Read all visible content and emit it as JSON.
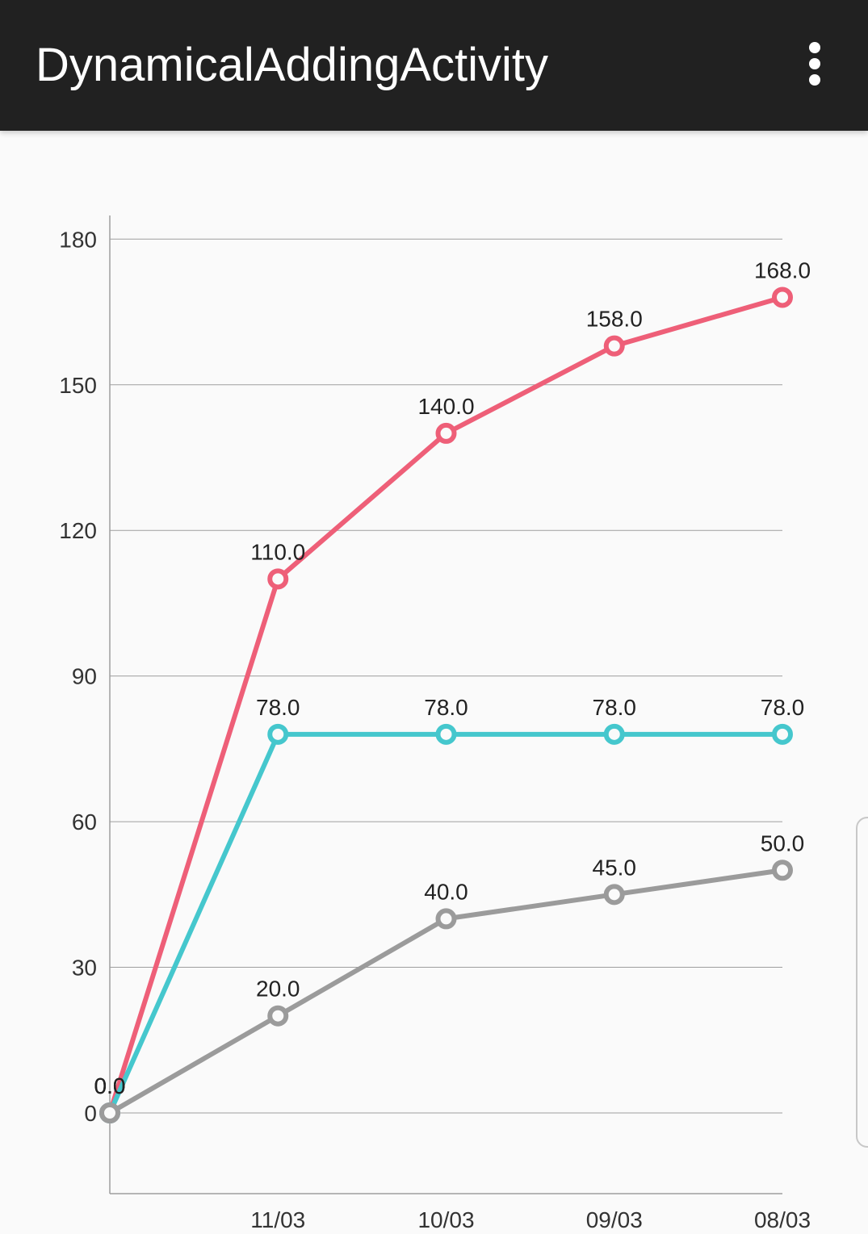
{
  "app_bar": {
    "title": "DynamicalAddingActivity",
    "menu_icon": "more-vert-icon",
    "background": "#212121"
  },
  "chart_data": {
    "type": "line",
    "categories": [
      "",
      "11/03",
      "10/03",
      "09/03",
      "08/03"
    ],
    "ylim": [
      -17,
      183
    ],
    "yticks": [
      0,
      30,
      60,
      90,
      120,
      150,
      180
    ],
    "grid": true,
    "series": [
      {
        "color": "#ee5f78",
        "values": [
          0.0,
          110.0,
          140.0,
          158.0,
          168.0
        ],
        "labels": [
          "0.0",
          "110.0",
          "140.0",
          "158.0",
          "168.0"
        ]
      },
      {
        "color": "#45c7cd",
        "values": [
          0.0,
          78.0,
          78.0,
          78.0,
          78.0
        ],
        "labels": [
          "0.0",
          "78.0",
          "78.0",
          "78.0",
          "78.0"
        ]
      },
      {
        "color": "#9b9b9b",
        "values": [
          0.0,
          20.0,
          40.0,
          45.0,
          50.0
        ],
        "labels": [
          "0.0",
          "20.0",
          "40.0",
          "45.0",
          "50.0"
        ]
      }
    ]
  }
}
